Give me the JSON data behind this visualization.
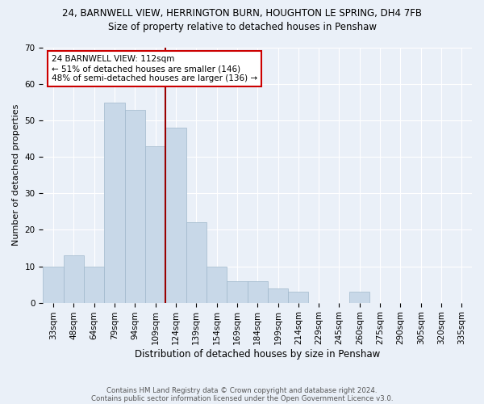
{
  "title": "24, BARNWELL VIEW, HERRINGTON BURN, HOUGHTON LE SPRING, DH4 7FB",
  "subtitle": "Size of property relative to detached houses in Penshaw",
  "xlabel": "Distribution of detached houses by size in Penshaw",
  "ylabel": "Number of detached properties",
  "footnote1": "Contains HM Land Registry data © Crown copyright and database right 2024.",
  "footnote2": "Contains public sector information licensed under the Open Government Licence v3.0.",
  "bin_labels": [
    "33sqm",
    "48sqm",
    "64sqm",
    "79sqm",
    "94sqm",
    "109sqm",
    "124sqm",
    "139sqm",
    "154sqm",
    "169sqm",
    "184sqm",
    "199sqm",
    "214sqm",
    "229sqm",
    "245sqm",
    "260sqm",
    "275sqm",
    "290sqm",
    "305sqm",
    "320sqm",
    "335sqm"
  ],
  "bar_values": [
    10,
    13,
    10,
    55,
    53,
    43,
    48,
    22,
    10,
    6,
    6,
    4,
    3,
    0,
    0,
    3,
    0,
    0,
    0,
    0,
    0
  ],
  "bar_color": "#c8d8e8",
  "bar_edge_color": "#a0b8cc",
  "vline_bin": 5,
  "vline_color": "#990000",
  "ylim": [
    0,
    70
  ],
  "yticks": [
    0,
    10,
    20,
    30,
    40,
    50,
    60,
    70
  ],
  "annotation_line1": "24 BARNWELL VIEW: 112sqm",
  "annotation_line2": "← 51% of detached houses are smaller (146)",
  "annotation_line3": "48% of semi-detached houses are larger (136) →",
  "annotation_box_color": "#ffffff",
  "annotation_box_edge": "#cc0000",
  "bg_color": "#eaf0f8",
  "title_fontsize": 8.5,
  "subtitle_fontsize": 8.5,
  "ylabel_fontsize": 8,
  "xlabel_fontsize": 8.5,
  "tick_fontsize": 7.5,
  "annotation_fontsize": 7.5
}
